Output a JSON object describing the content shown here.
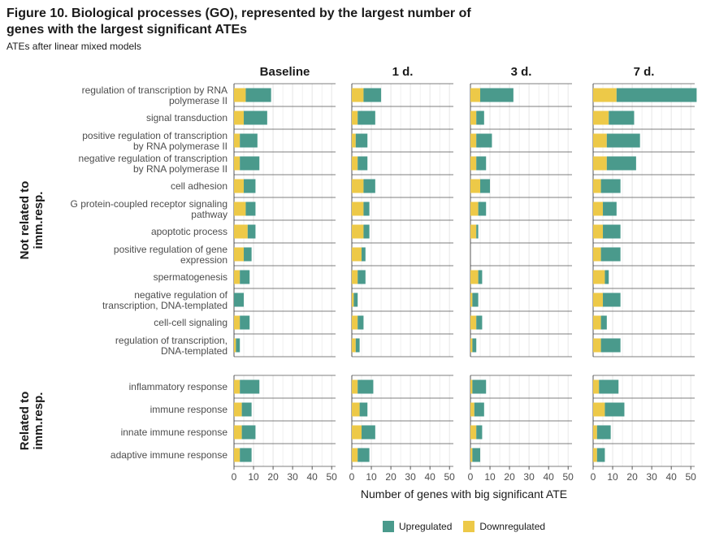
{
  "title": "Figure 10. Biological processes (GO), represented by the largest number of genes with the largest significant ATEs",
  "subtitle": "ATEs after linear mixed models",
  "colors": {
    "up": "#4a9a8c",
    "down": "#edc948"
  },
  "chart_data": {
    "type": "bar",
    "stacked": true,
    "orientation": "horizontal",
    "xlabel": "Number of genes with big significant ATE",
    "xlim": [
      0,
      52
    ],
    "xticks": [
      0,
      10,
      20,
      30,
      40,
      50
    ],
    "panels": [
      "Baseline",
      "1 d.",
      "3 d.",
      "7 d."
    ],
    "groups": [
      {
        "label": "Not related to imm.resp.",
        "categories": [
          "regulation of transcription by RNA polymerase II",
          "signal transduction",
          "positive regulation of transcription by RNA polymerase II",
          "negative regulation of transcription by RNA polymerase II",
          "cell adhesion",
          "G protein-coupled receptor signaling pathway",
          "apoptotic process",
          "positive regulation of gene expression",
          "spermatogenesis",
          "negative regulation of transcription, DNA-templated",
          "cell-cell signaling",
          "regulation of transcription, DNA-templated"
        ]
      },
      {
        "label": "Related to imm.resp.",
        "categories": [
          "inflammatory response",
          "immune response",
          "innate immune response",
          "adaptive immune response"
        ]
      }
    ],
    "series": [
      {
        "name": "Downregulated",
        "values": {
          "Baseline": [
            6,
            5,
            3,
            3,
            5,
            6,
            7,
            5,
            3,
            0,
            3,
            1,
            3,
            4,
            4,
            3
          ],
          "1 d.": [
            6,
            3,
            2,
            3,
            6,
            6,
            6,
            5,
            3,
            1,
            3,
            2,
            3,
            4,
            5,
            3
          ],
          "3 d.": [
            5,
            3,
            3,
            3,
            5,
            4,
            3,
            0,
            4,
            1,
            3,
            1,
            1,
            2,
            3,
            1
          ],
          "7 d.": [
            12,
            8,
            7,
            7,
            4,
            5,
            5,
            4,
            6,
            5,
            4,
            4,
            3,
            6,
            2,
            2
          ]
        }
      },
      {
        "name": "Upregulated",
        "values": {
          "Baseline": [
            13,
            12,
            9,
            10,
            6,
            5,
            4,
            4,
            5,
            5,
            5,
            2,
            10,
            5,
            7,
            6
          ],
          "1 d.": [
            9,
            9,
            6,
            5,
            6,
            3,
            3,
            2,
            4,
            2,
            3,
            2,
            8,
            4,
            7,
            6
          ],
          "3 d.": [
            17,
            4,
            8,
            5,
            5,
            4,
            1,
            0,
            2,
            3,
            3,
            2,
            7,
            5,
            3,
            4
          ],
          "7 d.": [
            41,
            13,
            17,
            15,
            10,
            7,
            9,
            10,
            2,
            9,
            3,
            10,
            10,
            10,
            7,
            4
          ]
        }
      }
    ],
    "legend": {
      "position": "bottom",
      "entries": [
        "Upregulated",
        "Downregulated"
      ]
    }
  }
}
